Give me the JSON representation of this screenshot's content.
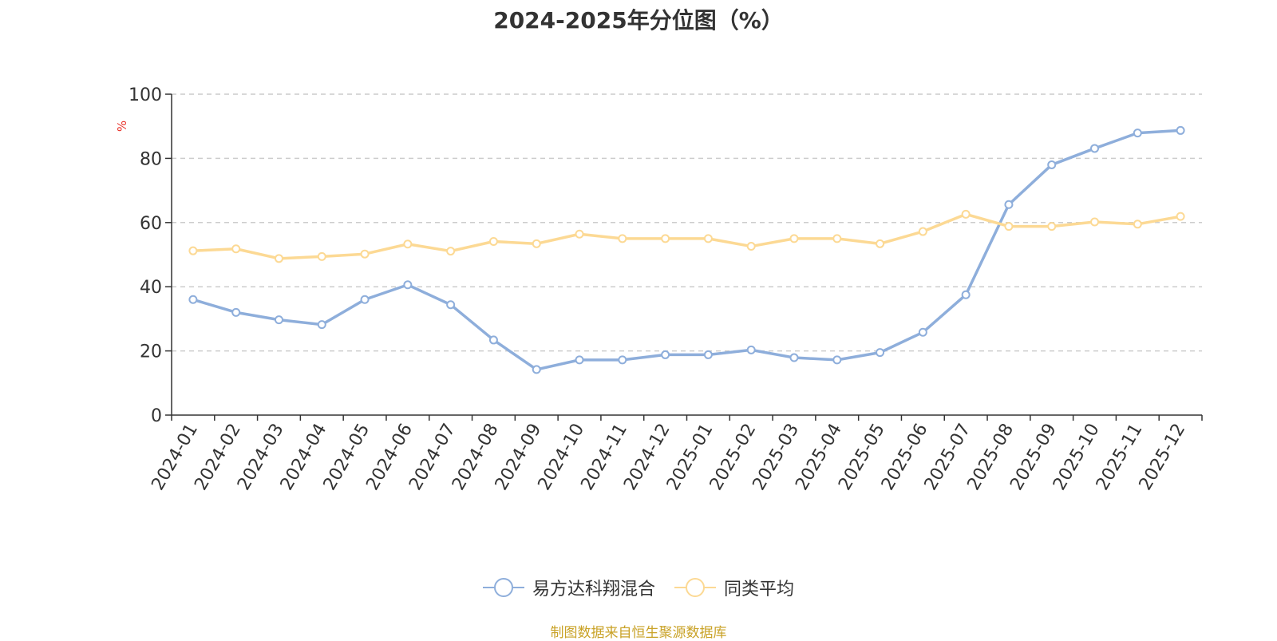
{
  "chart_data": {
    "type": "line",
    "title": "2024-2025年分位图（%）",
    "xlabel": "",
    "ylabel": "%",
    "categories": [
      "2024-01",
      "2024-02",
      "2024-03",
      "2024-04",
      "2024-05",
      "2024-06",
      "2024-07",
      "2024-08",
      "2024-09",
      "2024-10",
      "2024-11",
      "2024-12",
      "2025-01",
      "2025-02",
      "2025-03",
      "2025-04",
      "2025-05",
      "2025-06",
      "2025-07",
      "2025-08",
      "2025-09",
      "2025-10",
      "2025-11",
      "2025-12"
    ],
    "ylim": [
      0,
      100
    ],
    "yticks": [
      "0",
      "20",
      "40",
      "60",
      "80",
      "100"
    ],
    "grid": true,
    "legend_position": "bottom",
    "series": [
      {
        "name": "易方达科翔混合",
        "color": "#8eaedb",
        "values": [
          36,
          32,
          29.7,
          28.2,
          36,
          40.6,
          34.4,
          23.4,
          14.2,
          17.2,
          17.2,
          18.8,
          18.8,
          20.3,
          17.9,
          17.2,
          19.5,
          25.8,
          37.5,
          65.6,
          78,
          83.1,
          87.9,
          88.7
        ]
      },
      {
        "name": "同类平均",
        "color": "#fcd994",
        "values": [
          51.2,
          51.8,
          48.8,
          49.4,
          50.2,
          53.3,
          51.1,
          54.1,
          53.4,
          56.4,
          55.0,
          55.0,
          55.0,
          52.6,
          55.0,
          55.0,
          53.4,
          57.2,
          62.6,
          58.8,
          58.8,
          60.2,
          59.5,
          61.9
        ]
      }
    ]
  },
  "source_note": "制图数据来自恒生聚源数据库",
  "colors": {
    "axis": "#333333",
    "grid": "#cccccc",
    "ylabel": "#e8322a",
    "source_note": "#c9a227"
  }
}
